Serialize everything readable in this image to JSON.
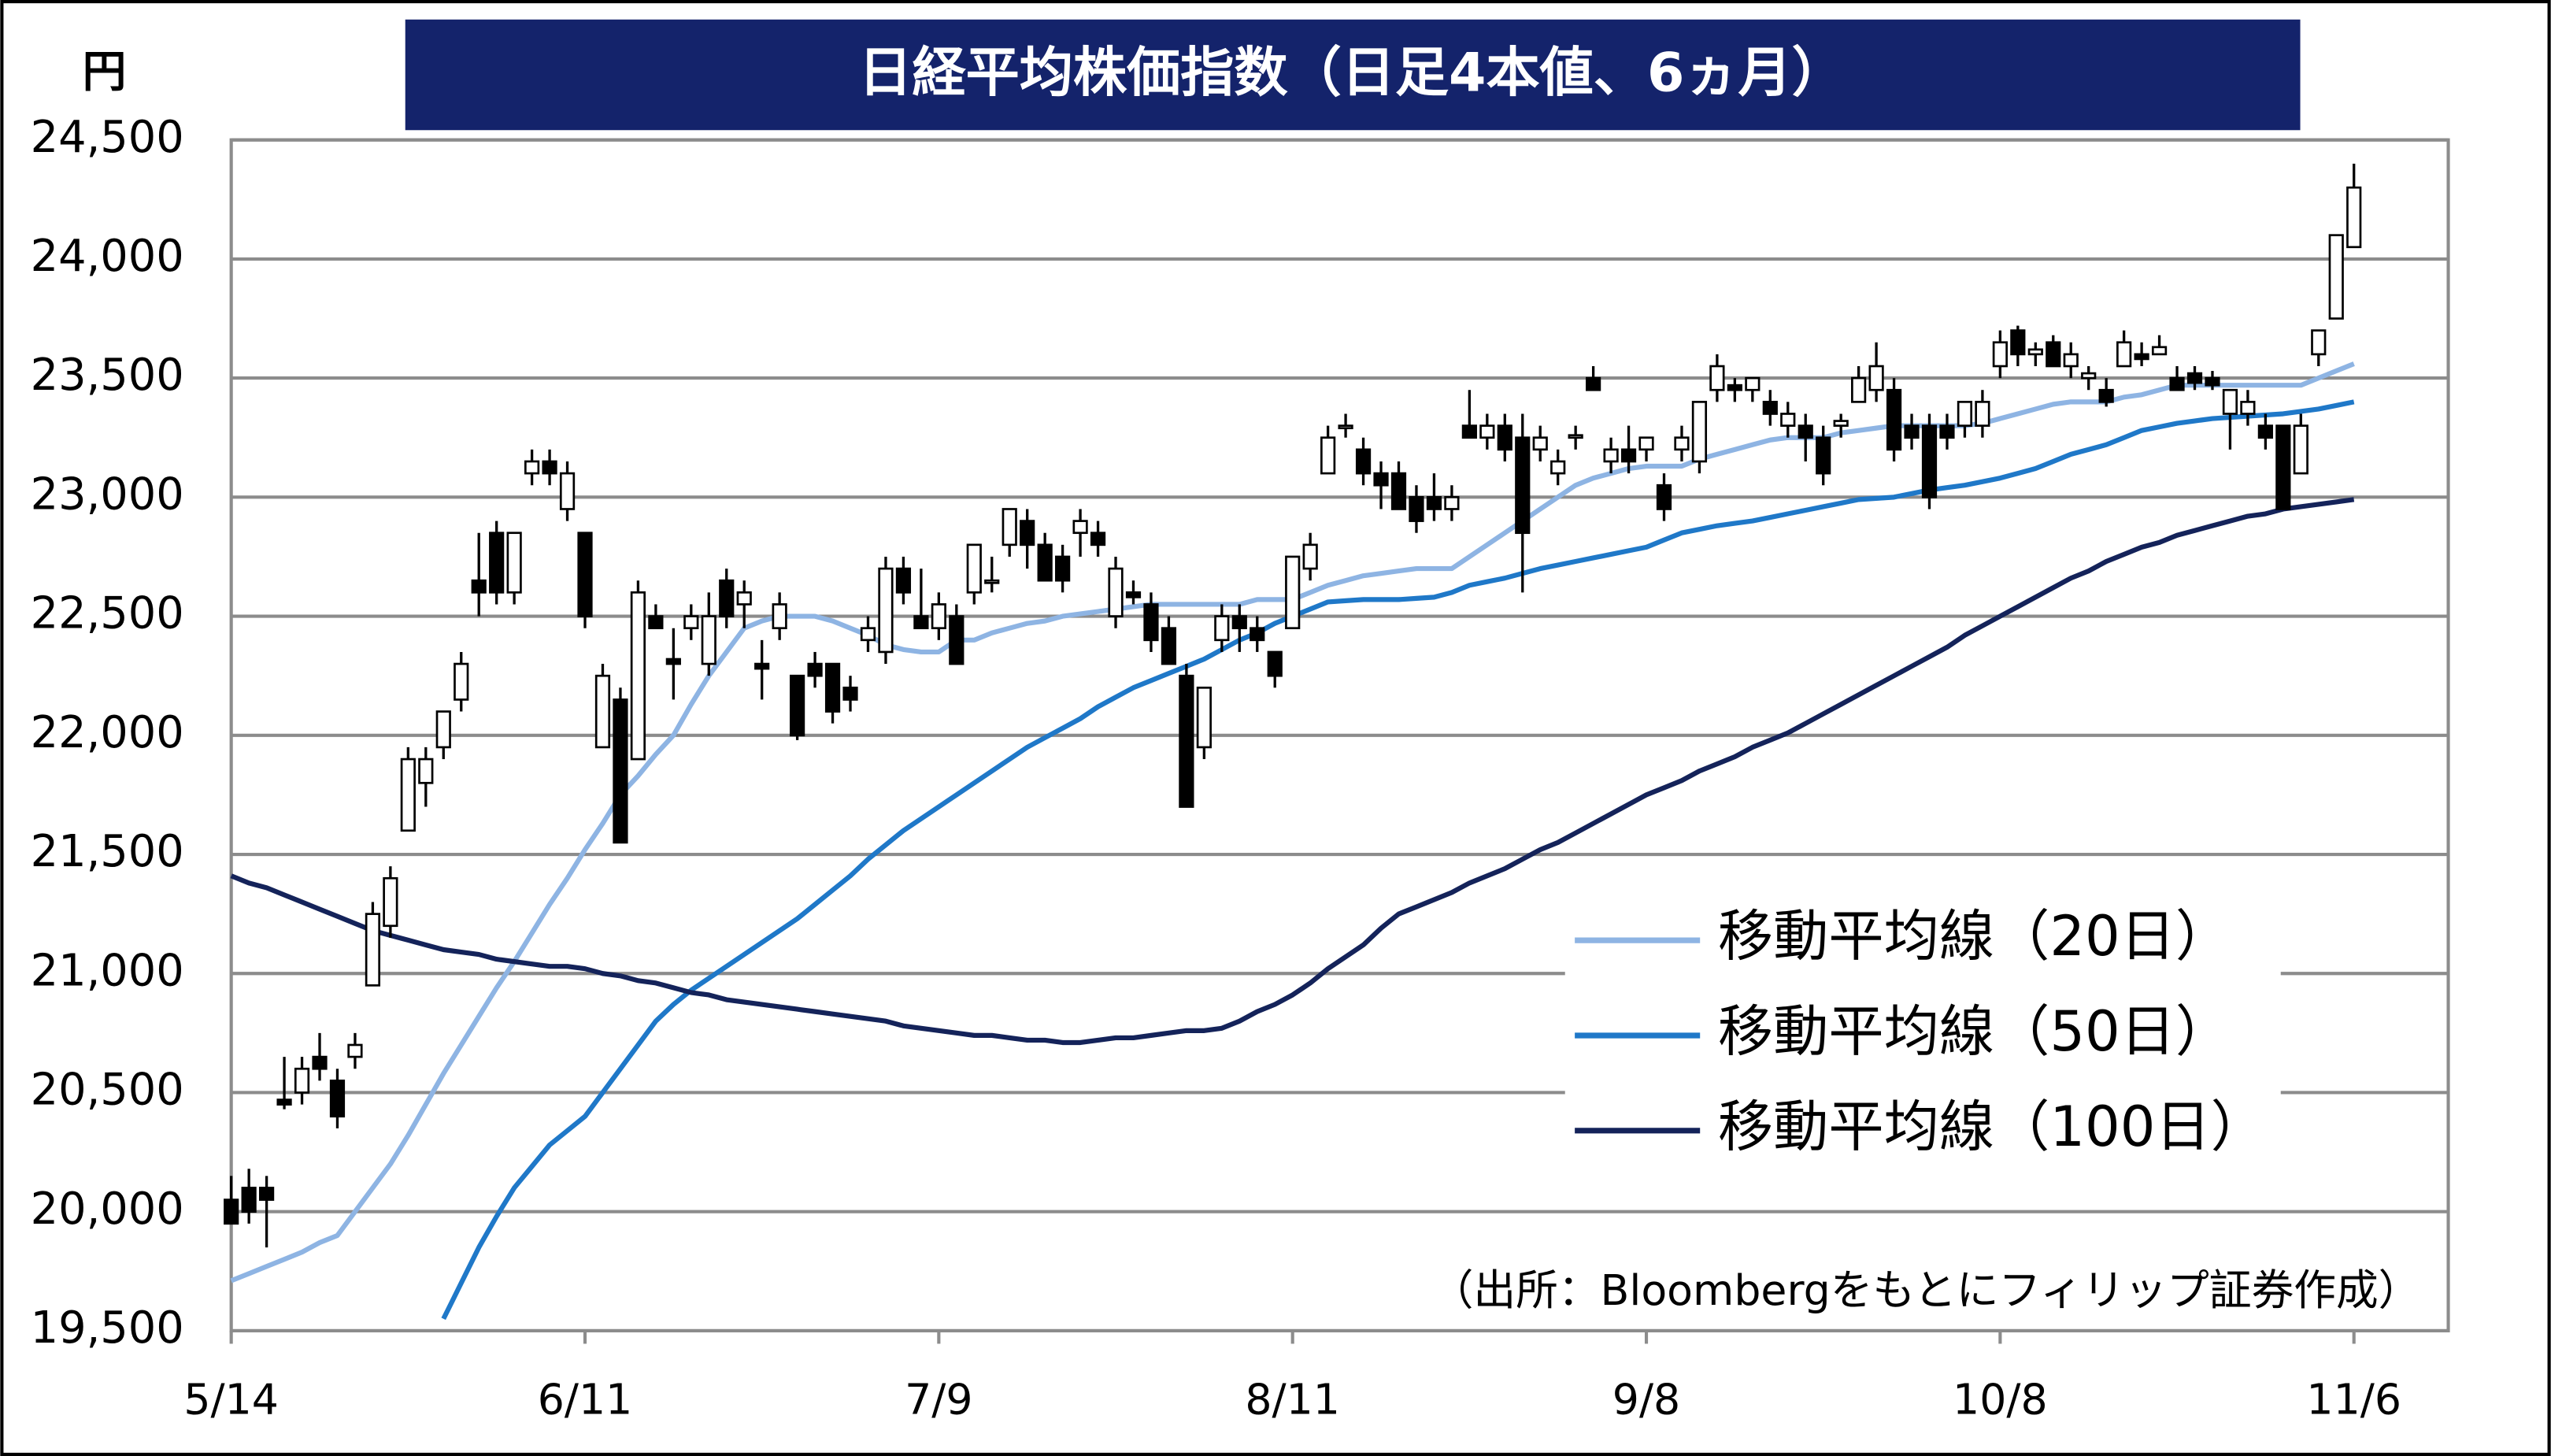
{
  "chart_data": {
    "type": "candlestick",
    "title": "日経平均株価指数（日足4本値、6ヵ月）",
    "y_unit": "円",
    "source": "（出所：Bloombergをもとにフィリップ証券作成）",
    "categories": [
      "5/14",
      null,
      null,
      null,
      null,
      null,
      null,
      null,
      null,
      null,
      null,
      null,
      null,
      null,
      null,
      null,
      null,
      null,
      null,
      null,
      "6/11",
      null,
      null,
      null,
      null,
      null,
      null,
      null,
      null,
      null,
      null,
      null,
      null,
      null,
      null,
      null,
      null,
      null,
      null,
      null,
      "7/9",
      null,
      null,
      null,
      null,
      null,
      null,
      null,
      null,
      null,
      null,
      null,
      null,
      null,
      null,
      null,
      null,
      null,
      null,
      null,
      "8/11",
      null,
      null,
      null,
      null,
      null,
      null,
      null,
      null,
      null,
      null,
      null,
      null,
      null,
      null,
      null,
      null,
      null,
      null,
      null,
      "9/8",
      null,
      null,
      null,
      null,
      null,
      null,
      null,
      null,
      null,
      null,
      null,
      null,
      null,
      null,
      null,
      null,
      null,
      null,
      null,
      "10/8",
      null,
      null,
      null,
      null,
      null,
      null,
      null,
      null,
      null,
      null,
      null,
      null,
      null,
      null,
      null,
      null,
      null,
      null,
      null,
      "11/6"
    ],
    "open": [
      20050,
      20100,
      20100,
      20470,
      20500,
      20650,
      20550,
      20650,
      20950,
      21200,
      21600,
      21800,
      21950,
      22150,
      22650,
      22850,
      22600,
      23100,
      23150,
      22950,
      22850,
      21950,
      22150,
      21900,
      22500,
      22320,
      22450,
      22300,
      22650,
      22550,
      22300,
      22450,
      22250,
      22300,
      22300,
      22200,
      22400,
      22350,
      22700,
      22500,
      22450,
      22500,
      22600,
      22650,
      22800,
      22900,
      22800,
      22750,
      22850,
      22850,
      22500,
      22600,
      22550,
      22450,
      22250,
      21950,
      22400,
      22500,
      22450,
      22350,
      22450,
      22700,
      23100,
      23300,
      23200,
      23100,
      23100,
      23000,
      23000,
      22950,
      23300,
      23250,
      23300,
      23250,
      23200,
      23100,
      23250,
      23500,
      23150,
      23200,
      23200,
      23050,
      23200,
      23150,
      23450,
      23470,
      23450,
      23400,
      23300,
      23300,
      23250,
      23300,
      23400,
      23450,
      23450,
      23300,
      23300,
      23300,
      23300,
      23300,
      23550,
      23700,
      23600,
      23650,
      23550,
      23500,
      23450,
      23550,
      23600,
      23600,
      23500,
      23520,
      23500,
      23350,
      23350,
      23300,
      23300,
      23100,
      23600,
      23750,
      24050
    ],
    "high": [
      20150,
      20180,
      20150,
      20650,
      20650,
      20750,
      20600,
      20750,
      21300,
      21450,
      21950,
      21950,
      22100,
      22350,
      22850,
      22900,
      22850,
      23200,
      23200,
      23150,
      22850,
      22300,
      22200,
      22650,
      22550,
      22450,
      22550,
      22600,
      22700,
      22650,
      22400,
      22600,
      22250,
      22350,
      22300,
      22250,
      22500,
      22750,
      22750,
      22700,
      22600,
      22550,
      22800,
      22750,
      22950,
      22950,
      22850,
      22800,
      22950,
      22900,
      22750,
      22650,
      22600,
      22500,
      22300,
      22200,
      22550,
      22550,
      22500,
      22350,
      22750,
      22850,
      23300,
      23350,
      23250,
      23150,
      23150,
      23050,
      23100,
      23050,
      23450,
      23350,
      23350,
      23350,
      23300,
      23200,
      23300,
      23550,
      23250,
      23300,
      23250,
      23100,
      23300,
      23400,
      23600,
      23500,
      23500,
      23450,
      23400,
      23350,
      23300,
      23350,
      23550,
      23650,
      23500,
      23350,
      23350,
      23350,
      23400,
      23450,
      23700,
      23720,
      23650,
      23680,
      23650,
      23550,
      23500,
      23700,
      23650,
      23680,
      23550,
      23550,
      23530,
      23450,
      23450,
      23350,
      23300,
      23350,
      23700,
      24100,
      24400
    ],
    "low": [
      19950,
      19950,
      19850,
      20430,
      20450,
      20550,
      20350,
      20600,
      20950,
      21150,
      21600,
      21700,
      21900,
      22100,
      22500,
      22550,
      22550,
      23050,
      23050,
      22900,
      22450,
      21950,
      21550,
      21900,
      22450,
      22150,
      22400,
      22250,
      22450,
      22450,
      22150,
      22400,
      21980,
      22200,
      22050,
      22100,
      22350,
      22300,
      22550,
      22450,
      22400,
      22300,
      22550,
      22600,
      22750,
      22700,
      22650,
      22600,
      22750,
      22750,
      22450,
      22550,
      22350,
      22300,
      21700,
      21900,
      22350,
      22350,
      22350,
      22200,
      22450,
      22650,
      23100,
      23250,
      23050,
      22950,
      22950,
      22850,
      22900,
      22900,
      23250,
      23200,
      23150,
      22600,
      23150,
      23050,
      23200,
      23450,
      23100,
      23100,
      23150,
      22900,
      23150,
      23100,
      23400,
      23400,
      23400,
      23300,
      23250,
      23150,
      23050,
      23250,
      23400,
      23400,
      23150,
      23200,
      22950,
      23200,
      23250,
      23250,
      23500,
      23550,
      23550,
      23550,
      23500,
      23450,
      23380,
      23550,
      23550,
      23600,
      23450,
      23450,
      23450,
      23200,
      23300,
      23200,
      22950,
      23100,
      23550,
      23750,
      24050
    ],
    "close": [
      19950,
      20000,
      20050,
      20450,
      20600,
      20600,
      20400,
      20700,
      21250,
      21400,
      21900,
      21900,
      22100,
      22300,
      22600,
      22600,
      22850,
      23150,
      23100,
      23100,
      22500,
      22250,
      21550,
      22600,
      22450,
      22300,
      22500,
      22500,
      22500,
      22600,
      22280,
      22550,
      22000,
      22250,
      22100,
      22150,
      22450,
      22700,
      22600,
      22450,
      22550,
      22300,
      22800,
      22650,
      22950,
      22800,
      22650,
      22650,
      22900,
      22800,
      22700,
      22580,
      22400,
      22300,
      21700,
      22200,
      22500,
      22450,
      22400,
      22250,
      22750,
      22800,
      23250,
      23300,
      23100,
      23050,
      22950,
      22900,
      22950,
      23000,
      23250,
      23300,
      23200,
      22850,
      23250,
      23150,
      23260,
      23450,
      23200,
      23150,
      23250,
      22950,
      23250,
      23400,
      23550,
      23450,
      23500,
      23350,
      23350,
      23250,
      23100,
      23320,
      23500,
      23550,
      23200,
      23250,
      23000,
      23250,
      23400,
      23400,
      23650,
      23600,
      23620,
      23550,
      23600,
      23520,
      23400,
      23650,
      23580,
      23630,
      23450,
      23480,
      23470,
      23450,
      23400,
      23250,
      22950,
      23300,
      23700,
      24100,
      24300
    ],
    "up_color": "#ffffff",
    "down_color": "#000000",
    "series": [
      {
        "name": "移動平均線（20日）",
        "color": "#8eb4e3",
        "values": [
          19710,
          19740,
          19770,
          19800,
          19830,
          19870,
          19900,
          20000,
          20100,
          20200,
          20320,
          20450,
          20580,
          20700,
          20820,
          20940,
          21050,
          21170,
          21290,
          21400,
          21520,
          21630,
          21750,
          21830,
          21920,
          22000,
          22130,
          22250,
          22350,
          22450,
          22480,
          22500,
          22500,
          22500,
          22480,
          22450,
          22420,
          22380,
          22360,
          22350,
          22350,
          22400,
          22400,
          22430,
          22450,
          22470,
          22480,
          22500,
          22510,
          22520,
          22530,
          22540,
          22550,
          22550,
          22550,
          22550,
          22550,
          22550,
          22570,
          22570,
          22570,
          22600,
          22630,
          22650,
          22670,
          22680,
          22690,
          22700,
          22700,
          22700,
          22750,
          22800,
          22850,
          22900,
          22950,
          23000,
          23050,
          23080,
          23100,
          23120,
          23130,
          23130,
          23130,
          23160,
          23180,
          23200,
          23220,
          23240,
          23250,
          23250,
          23250,
          23270,
          23280,
          23290,
          23300,
          23300,
          23300,
          23300,
          23300,
          23310,
          23330,
          23350,
          23370,
          23390,
          23400,
          23400,
          23400,
          23420,
          23430,
          23450,
          23470,
          23470,
          23470,
          23470,
          23470,
          23470,
          23470,
          23470,
          23500,
          23530,
          23560
        ]
      },
      {
        "name": "移動平均線（50日）",
        "color": "#1f78c8",
        "values": [
          null,
          null,
          null,
          null,
          null,
          null,
          null,
          null,
          null,
          null,
          null,
          null,
          19550,
          19700,
          19850,
          19980,
          20100,
          20190,
          20280,
          20340,
          20400,
          20500,
          20600,
          20700,
          20800,
          20870,
          20930,
          20980,
          21030,
          21080,
          21130,
          21180,
          21230,
          21290,
          21350,
          21410,
          21480,
          21540,
          21600,
          21650,
          21700,
          21750,
          21800,
          21850,
          21900,
          21950,
          21990,
          22030,
          22070,
          22120,
          22160,
          22200,
          22230,
          22260,
          22290,
          22320,
          22360,
          22400,
          22430,
          22470,
          22500,
          22530,
          22560,
          22565,
          22570,
          22570,
          22570,
          22575,
          22580,
          22600,
          22630,
          22645,
          22660,
          22680,
          22700,
          22715,
          22730,
          22745,
          22760,
          22775,
          22790,
          22820,
          22850,
          22865,
          22880,
          22890,
          22900,
          22915,
          22930,
          22945,
          22960,
          22975,
          22990,
          22995,
          23000,
          23015,
          23030,
          23040,
          23050,
          23065,
          23080,
          23100,
          23120,
          23150,
          23180,
          23200,
          23220,
          23250,
          23280,
          23295,
          23310,
          23320,
          23330,
          23335,
          23340,
          23345,
          23350,
          23360,
          23370,
          23385,
          23400
        ]
      },
      {
        "name": "移動平均線（100日）",
        "color": "#14235a",
        "values": [
          21410,
          21380,
          21360,
          21330,
          21300,
          21270,
          21240,
          21210,
          21180,
          21160,
          21140,
          21120,
          21100,
          21090,
          21080,
          21060,
          21050,
          21040,
          21030,
          21030,
          21020,
          21000,
          20990,
          20970,
          20960,
          20940,
          20920,
          20910,
          20890,
          20880,
          20870,
          20860,
          20850,
          20840,
          20830,
          20820,
          20810,
          20800,
          20780,
          20770,
          20760,
          20750,
          20740,
          20740,
          20730,
          20720,
          20720,
          20710,
          20710,
          20720,
          20730,
          20730,
          20740,
          20750,
          20760,
          20760,
          20770,
          20800,
          20840,
          20870,
          20910,
          20960,
          21020,
          21070,
          21120,
          21190,
          21250,
          21280,
          21310,
          21340,
          21380,
          21410,
          21440,
          21480,
          21520,
          21550,
          21590,
          21630,
          21670,
          21710,
          21750,
          21780,
          21810,
          21850,
          21880,
          21910,
          21950,
          21980,
          22010,
          22050,
          22090,
          22130,
          22170,
          22210,
          22250,
          22290,
          22330,
          22370,
          22420,
          22460,
          22500,
          22540,
          22580,
          22620,
          22660,
          22690,
          22730,
          22760,
          22790,
          22810,
          22840,
          22860,
          22880,
          22900,
          22920,
          22930,
          22950,
          22960,
          22970,
          22980,
          22990
        ]
      }
    ],
    "ylim": [
      19500,
      24500
    ],
    "yticks": [
      {
        "value": 19500,
        "label": "19,500"
      },
      {
        "value": 20000,
        "label": "20,000"
      },
      {
        "value": 20500,
        "label": "20,500"
      },
      {
        "value": 21000,
        "label": "21,000"
      },
      {
        "value": 21500,
        "label": "21,500"
      },
      {
        "value": 22000,
        "label": "22,000"
      },
      {
        "value": 22500,
        "label": "22,500"
      },
      {
        "value": 23000,
        "label": "23,000"
      },
      {
        "value": 23500,
        "label": "23,500"
      },
      {
        "value": 24000,
        "label": "24,000"
      },
      {
        "value": 24500,
        "label": "24,500"
      }
    ],
    "grid": true
  }
}
